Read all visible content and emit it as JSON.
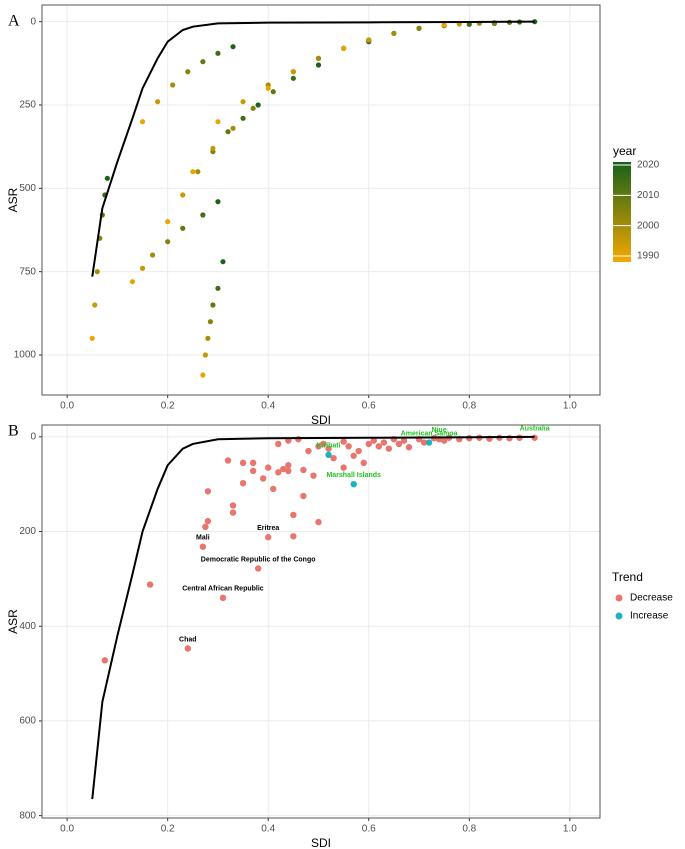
{
  "chart_data": [
    {
      "type": "scatter",
      "panel": "A",
      "y_title": "ASR",
      "x_title": "SDI",
      "legend_title": "year",
      "xlim": [
        -0.05,
        1.06
      ],
      "ylim": [
        -50,
        1120
      ],
      "y_reversed": true,
      "grid": true,
      "xticks": [
        {
          "value": 0,
          "label": "0.0"
        },
        0.2,
        0.4,
        0.6,
        0.8,
        {
          "value": 1,
          "label": "1.0"
        }
      ],
      "yticks": [
        0,
        250,
        500,
        750,
        1000
      ],
      "color_low": "#f5a800",
      "color_high": "#17601a",
      "colorbar_lim": [
        1988,
        2021
      ],
      "colorbar_ticks": [
        1990,
        2000,
        2010,
        2020
      ],
      "x": [
        0.05,
        0.055,
        0.06,
        0.065,
        0.07,
        0.075,
        0.08,
        0.27,
        0.275,
        0.28,
        0.285,
        0.29,
        0.3,
        0.31,
        0.13,
        0.15,
        0.17,
        0.2,
        0.23,
        0.27,
        0.3,
        0.2,
        0.23,
        0.26,
        0.29,
        0.32,
        0.35,
        0.38,
        0.25,
        0.29,
        0.33,
        0.37,
        0.41,
        0.45,
        0.5,
        0.3,
        0.35,
        0.4,
        0.45,
        0.5,
        0.55,
        0.6,
        0.4,
        0.45,
        0.5,
        0.55,
        0.6,
        0.65,
        0.7,
        0.55,
        0.6,
        0.65,
        0.7,
        0.75,
        0.8,
        0.85,
        0.75,
        0.78,
        0.82,
        0.85,
        0.88,
        0.9,
        0.93,
        0.15,
        0.18,
        0.21,
        0.24,
        0.27,
        0.3,
        0.33
      ],
      "y": [
        950,
        850,
        750,
        650,
        580,
        520,
        470,
        1060,
        1000,
        950,
        900,
        850,
        800,
        720,
        780,
        740,
        700,
        660,
        620,
        580,
        540,
        600,
        520,
        450,
        390,
        330,
        290,
        250,
        450,
        380,
        320,
        260,
        210,
        170,
        130,
        300,
        240,
        190,
        150,
        110,
        80,
        60,
        200,
        150,
        110,
        80,
        55,
        35,
        20,
        80,
        55,
        35,
        20,
        12,
        8,
        5,
        10,
        7,
        5,
        3,
        2,
        1,
        0,
        300,
        240,
        190,
        150,
        120,
        95,
        75
      ],
      "year": [
        1990,
        1995,
        2000,
        2005,
        2010,
        2015,
        2020,
        1990,
        1995,
        2000,
        2005,
        2010,
        2015,
        2020,
        1990,
        1995,
        2000,
        2005,
        2010,
        2015,
        2020,
        1990,
        1995,
        2000,
        2005,
        2010,
        2015,
        2020,
        1990,
        1995,
        2000,
        2005,
        2010,
        2015,
        2020,
        1990,
        1995,
        2000,
        2005,
        2010,
        2015,
        2020,
        1990,
        1995,
        2000,
        2005,
        2010,
        2015,
        2020,
        1990,
        1995,
        2000,
        2005,
        2010,
        2015,
        2020,
        1990,
        1995,
        2000,
        2005,
        2010,
        2015,
        2020,
        1990,
        1995,
        2000,
        2005,
        2010,
        2015,
        2020
      ],
      "frontier": {
        "color": "#000000",
        "x": [
          0.05,
          0.07,
          0.1,
          0.13,
          0.15,
          0.18,
          0.2,
          0.23,
          0.25,
          0.3,
          0.4,
          0.6,
          0.8,
          0.93
        ],
        "y": [
          765,
          560,
          420,
          290,
          200,
          110,
          60,
          25,
          15,
          5,
          3,
          2,
          1,
          0
        ]
      }
    },
    {
      "type": "scatter",
      "panel": "B",
      "y_title": "ASR",
      "x_title": "SDI",
      "legend_title": "Trend",
      "xlim": [
        -0.05,
        1.06
      ],
      "ylim": [
        -25,
        805
      ],
      "y_reversed": true,
      "grid": true,
      "xticks": [
        {
          "value": 0,
          "label": "0.0"
        },
        0.2,
        0.4,
        0.6,
        0.8,
        {
          "value": 1,
          "label": "1.0"
        }
      ],
      "yticks": [
        0,
        200,
        400,
        600,
        800
      ],
      "series": [
        {
          "name": "Decrease",
          "color": "#e8766e",
          "x": [
            0.075,
            0.165,
            0.24,
            0.31,
            0.38,
            0.27,
            0.4,
            0.93,
            0.74,
            0.28,
            0.28,
            0.275,
            0.32,
            0.33,
            0.33,
            0.35,
            0.35,
            0.37,
            0.37,
            0.39,
            0.4,
            0.41,
            0.42,
            0.43,
            0.44,
            0.45,
            0.45,
            0.44,
            0.47,
            0.47,
            0.48,
            0.49,
            0.5,
            0.5,
            0.51,
            0.52,
            0.53,
            0.55,
            0.55,
            0.56,
            0.57,
            0.58,
            0.59,
            0.6,
            0.61,
            0.62,
            0.63,
            0.64,
            0.65,
            0.66,
            0.67,
            0.68,
            0.7,
            0.71,
            0.73,
            0.75,
            0.76,
            0.78,
            0.8,
            0.82,
            0.84,
            0.86,
            0.88,
            0.9,
            0.46,
            0.44,
            0.42
          ],
          "y": [
            472,
            312,
            447,
            340,
            278,
            232,
            212,
            2,
            5,
            115,
            178,
            190,
            50,
            145,
            160,
            55,
            98,
            55,
            72,
            88,
            65,
            110,
            75,
            68,
            60,
            165,
            210,
            72,
            125,
            70,
            30,
            82,
            180,
            20,
            15,
            25,
            45,
            10,
            65,
            20,
            40,
            30,
            55,
            15,
            8,
            20,
            12,
            25,
            5,
            15,
            8,
            22,
            5,
            12,
            3,
            8,
            2,
            5,
            3,
            2,
            4,
            2,
            3,
            2,
            5,
            8,
            15
          ],
          "labels": [
            null,
            null,
            "Chad",
            "Central African Republic",
            "Democratic Republic of the Congo",
            "Mali",
            "Eritrea",
            "Australia",
            "Niue",
            null,
            null,
            null,
            null,
            null,
            null,
            null,
            null,
            null,
            null,
            null,
            null,
            null,
            null,
            null,
            null,
            null,
            null,
            null,
            null,
            null,
            null,
            null,
            null,
            null,
            null,
            null,
            null,
            null,
            null,
            null,
            null,
            null,
            null,
            null,
            null,
            null,
            null,
            null,
            null,
            null,
            null,
            null,
            null,
            null,
            null,
            null,
            null,
            null,
            null,
            null,
            null,
            null,
            null,
            null,
            null,
            null,
            null
          ],
          "label_colors": [
            null,
            null,
            "#000000",
            "#000000",
            "#000000",
            "#000000",
            "#000000",
            "#22c222",
            "#22c222",
            null,
            null,
            null,
            null,
            null,
            null,
            null,
            null,
            null,
            null,
            null,
            null,
            null,
            null,
            null,
            null,
            null,
            null,
            null,
            null,
            null,
            null,
            null,
            null,
            null,
            null,
            null,
            null,
            null,
            null,
            null,
            null,
            null,
            null,
            null,
            null,
            null,
            null,
            null,
            null,
            null,
            null,
            null,
            null,
            null,
            null,
            null,
            null,
            null,
            null,
            null,
            null,
            null,
            null,
            null,
            null,
            null,
            null
          ]
        },
        {
          "name": "Increase",
          "color": "#1eb4bd",
          "x": [
            0.52,
            0.57,
            0.72
          ],
          "y": [
            38,
            100,
            12
          ],
          "labels": [
            "Kiribati",
            "Marshall Islands",
            "American Samoa"
          ],
          "label_colors": [
            "#22c222",
            "#22c222",
            "#22c222"
          ]
        }
      ],
      "frontier": {
        "color": "#000000",
        "x": [
          0.05,
          0.07,
          0.1,
          0.13,
          0.15,
          0.18,
          0.2,
          0.23,
          0.25,
          0.3,
          0.4,
          0.6,
          0.8,
          0.93
        ],
        "y": [
          765,
          560,
          420,
          290,
          200,
          110,
          60,
          25,
          15,
          5,
          3,
          2,
          1,
          0
        ]
      }
    }
  ]
}
